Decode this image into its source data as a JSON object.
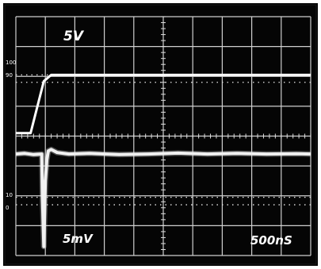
{
  "chart_data": {
    "type": "line",
    "grid": true,
    "graticule": {
      "divisions_x": 10,
      "divisions_y": 8
    },
    "left_scale_labels": [
      "100",
      "90",
      "10",
      "0"
    ],
    "series": [
      {
        "name": "5V",
        "color": "#ffffff",
        "x": [
          0,
          0.5,
          0.95,
          1.2,
          1.5,
          3,
          5,
          7,
          9,
          10
        ],
        "y": [
          4.1,
          4.1,
          5.84,
          6.05,
          6.05,
          6.05,
          6.05,
          6.05,
          6.05,
          6.05
        ]
      },
      {
        "name": "5mV",
        "color": "#ffffff",
        "x": [
          0,
          0.3,
          0.6,
          0.88,
          0.9,
          0.95,
          1.0,
          1.05,
          1.1,
          1.2,
          1.4,
          1.8,
          2.5,
          3.5,
          4.5,
          5.5,
          6.5,
          7.5,
          8.5,
          9.5,
          10
        ],
        "y": [
          3.4,
          3.42,
          3.38,
          3.4,
          2.0,
          0.3,
          2.5,
          3.2,
          3.5,
          3.55,
          3.45,
          3.4,
          3.42,
          3.38,
          3.4,
          3.43,
          3.4,
          3.42,
          3.4,
          3.41,
          3.4
        ]
      }
    ],
    "labels": {
      "top": "5V",
      "bottom": "5mV",
      "timebase": "500nS"
    }
  }
}
